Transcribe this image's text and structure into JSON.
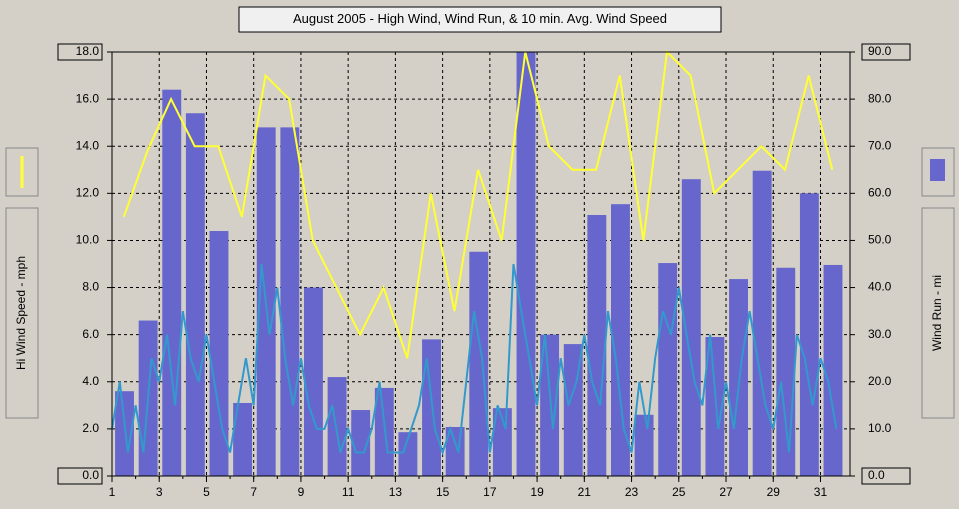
{
  "chart_data": {
    "type": "combo",
    "title": "August 2005 - High Wind, Wind Run, & 10 min. Avg. Wind Speed",
    "y_label": "Hi Wind Speed - mph",
    "y2_label": "Wind Run - mi",
    "xlim": [
      1,
      32.25
    ],
    "xticks": [
      1,
      3,
      5,
      7,
      9,
      11,
      13,
      15,
      17,
      19,
      21,
      23,
      25,
      27,
      29,
      31
    ],
    "ylim": [
      0,
      18
    ],
    "yticks": [
      {
        "value": 0,
        "label": "0.0"
      },
      {
        "value": 2,
        "label": "2.0"
      },
      {
        "value": 4,
        "label": "4.0"
      },
      {
        "value": 6,
        "label": "6.0"
      },
      {
        "value": 8,
        "label": "8.0"
      },
      {
        "value": 10,
        "label": "10.0"
      },
      {
        "value": 12,
        "label": "12.0"
      },
      {
        "value": 14,
        "label": "14.0"
      },
      {
        "value": 16,
        "label": "16.0"
      },
      {
        "value": 18,
        "label": "18.0"
      }
    ],
    "y2lim": [
      0,
      90
    ],
    "y2ticks": [
      {
        "value": 0,
        "label": "0.0"
      },
      {
        "value": 10,
        "label": "10.0"
      },
      {
        "value": 20,
        "label": "20.0"
      },
      {
        "value": 30,
        "label": "30.0"
      },
      {
        "value": 40,
        "label": "40.0"
      },
      {
        "value": 50,
        "label": "50.0"
      },
      {
        "value": 60,
        "label": "60.0"
      },
      {
        "value": 70,
        "label": "70.0"
      },
      {
        "value": 80,
        "label": "80.0"
      },
      {
        "value": 90,
        "label": "90.0"
      }
    ],
    "grid": true,
    "series": [
      {
        "type": "bar",
        "axis": "y2",
        "color": "#6666cc",
        "x": [
          1,
          2,
          3,
          4,
          5,
          6,
          7,
          8,
          9,
          10,
          11,
          12,
          13,
          14,
          15,
          16,
          17,
          18,
          19,
          20,
          21,
          22,
          23,
          24,
          25,
          26,
          27,
          28,
          29,
          30,
          31
        ],
        "values": [
          18,
          33,
          82,
          77,
          52,
          15.5,
          74,
          74,
          40,
          21,
          14,
          18.7,
          9.3,
          29,
          10.4,
          47.6,
          14.4,
          90,
          30,
          28,
          55.4,
          57.7,
          13,
          45.2,
          63,
          29.5,
          41.8,
          64.8,
          44.2,
          60,
          44.8
        ]
      },
      {
        "type": "line",
        "axis": "y",
        "color": "#3399cc",
        "x": [
          1,
          1.33,
          1.67,
          2,
          2.33,
          2.67,
          3,
          3.33,
          3.67,
          4,
          4.33,
          4.67,
          5,
          5.33,
          5.67,
          6,
          6.33,
          6.67,
          7,
          7.33,
          7.67,
          8,
          8.33,
          8.67,
          9,
          9.33,
          9.67,
          10,
          10.33,
          10.67,
          11,
          11.33,
          11.67,
          12,
          12.33,
          12.67,
          13,
          13.33,
          13.67,
          14,
          14.33,
          14.67,
          15,
          15.33,
          15.67,
          16,
          16.33,
          16.67,
          17,
          17.33,
          17.67,
          18,
          18.33,
          18.67,
          19,
          19.33,
          19.67,
          20,
          20.33,
          20.67,
          21,
          21.33,
          21.67,
          22,
          22.33,
          22.67,
          23,
          23.33,
          23.67,
          24,
          24.33,
          24.67,
          25,
          25.33,
          25.67,
          26,
          26.33,
          26.67,
          27,
          27.33,
          27.67,
          28,
          28.33,
          28.67,
          29,
          29.33,
          29.67,
          30,
          30.33,
          30.67,
          31,
          31.33,
          31.67
        ],
        "values": [
          2,
          4,
          1,
          3,
          1,
          5,
          4,
          6,
          3,
          7,
          5,
          4,
          6,
          4,
          2,
          1,
          3,
          5,
          3,
          9,
          6,
          8,
          5,
          3,
          5,
          3,
          2,
          2,
          3,
          1,
          2,
          1,
          1,
          2,
          4,
          1,
          1,
          1,
          2,
          3,
          5,
          2,
          1,
          2,
          1,
          4,
          7,
          5,
          1,
          3,
          2,
          9,
          7,
          5,
          3,
          6,
          2,
          5,
          3,
          4,
          6,
          4,
          3,
          7,
          5,
          2,
          1,
          4,
          2,
          5,
          7,
          6,
          8,
          6,
          4,
          3,
          6,
          2,
          4,
          2,
          5,
          7,
          5,
          3,
          2,
          4,
          1,
          6,
          5,
          3,
          5,
          4,
          2
        ]
      },
      {
        "type": "line",
        "axis": "y",
        "color": "#ffff33",
        "x": [
          1,
          2,
          3,
          4,
          5,
          6,
          7,
          8,
          9,
          10,
          11,
          12,
          13,
          14,
          15,
          16,
          17,
          18,
          19,
          20,
          21,
          22,
          23,
          24,
          25,
          26,
          27,
          28,
          29,
          30,
          31
        ],
        "values": [
          11,
          13.8,
          16,
          14,
          14,
          11,
          17,
          16,
          10,
          8,
          6,
          8,
          5,
          12,
          7,
          13,
          10,
          18,
          14,
          13,
          13,
          17,
          10,
          18,
          17,
          12,
          13,
          14,
          13,
          17,
          13
        ]
      }
    ]
  }
}
